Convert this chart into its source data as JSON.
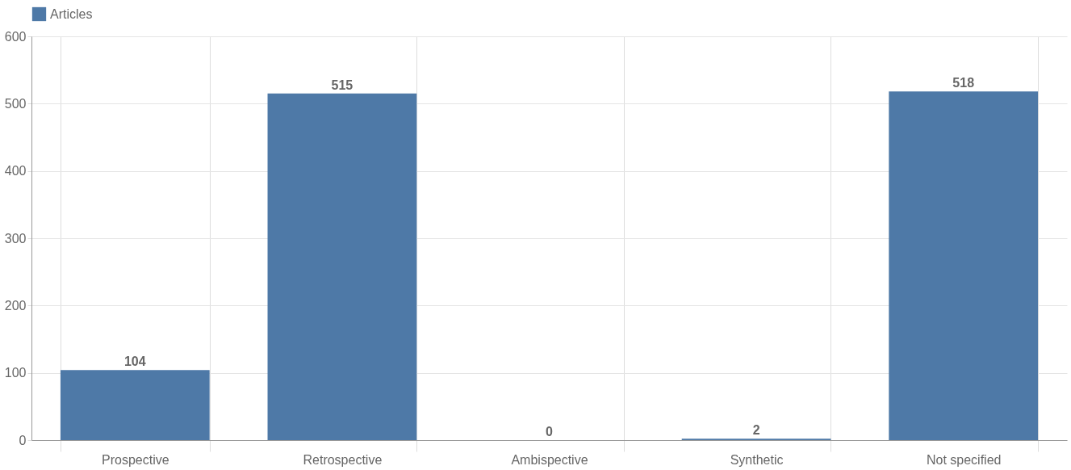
{
  "chart_data": {
    "type": "bar",
    "categories": [
      "Prospective",
      "Retrospective",
      "Ambispective",
      "Synthetic",
      "Not specified"
    ],
    "series": [
      {
        "name": "Articles",
        "color": "#4e79a7",
        "values": [
          104,
          515,
          0,
          2,
          518
        ]
      }
    ],
    "ylim": [
      0,
      600
    ],
    "yticks": [
      0,
      100,
      200,
      300,
      400,
      500,
      600
    ],
    "grid": true,
    "legend": "top",
    "data_labels": true
  }
}
